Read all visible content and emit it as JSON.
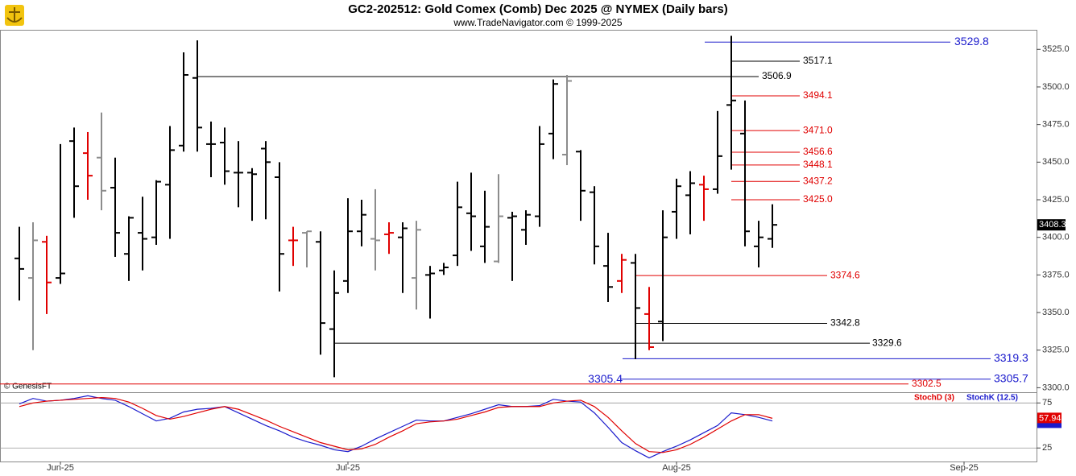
{
  "chart_data": [
    {
      "type": "ohlc",
      "title": "GC2-202512:  Gold Comex (Comb) Dec 2025 @ NYMEX  (Daily bars)",
      "subtitle": "www.TradeNavigator.com © 1999-2025",
      "watermark": "© GenesisFT",
      "categories": [
        null,
        null,
        null,
        "Jun-25",
        null,
        null,
        null,
        null,
        null,
        null,
        null,
        null,
        null,
        null,
        null,
        null,
        null,
        null,
        null,
        null,
        null,
        null,
        null,
        null,
        "Jul-25",
        null,
        null,
        null,
        null,
        null,
        null,
        null,
        null,
        null,
        null,
        null,
        null,
        null,
        null,
        null,
        null,
        null,
        null,
        null,
        null,
        null,
        null,
        null,
        "Aug-25",
        null,
        null,
        null,
        null,
        null,
        null,
        null,
        null,
        null,
        null,
        null,
        null,
        null,
        null,
        null,
        null,
        null,
        null,
        null,
        null,
        "Sep-25",
        null,
        null,
        null,
        null,
        null
      ],
      "open": [
        3386,
        3373,
        3397,
        3373,
        3464,
        3456,
        3453,
        3433,
        3389,
        3403,
        3400,
        3435,
        3461,
        3506,
        3462,
        3463,
        3443,
        3443,
        3459,
        3440,
        3398,
        3403,
        3397,
        3339,
        3371,
        3404,
        3399,
        3402,
        3400,
        3373,
        3375,
        3378,
        3388,
        3416,
        3394,
        3384,
        3413,
        3405,
        3414,
        3469,
        3455,
        3457,
        3430,
        3381,
        3371,
        3383,
        3349,
        3344,
        3417,
        3428,
        3435,
        3432,
        3488,
        3469,
        3394,
        3399,
        null,
        null,
        null,
        null,
        null,
        null,
        null,
        null,
        null,
        null,
        null,
        null,
        null,
        null,
        null,
        null,
        null,
        null,
        null
      ],
      "high": [
        3407,
        3410,
        3401,
        3462,
        3473,
        3470,
        3483,
        3453,
        3414,
        3427,
        3438,
        3474,
        3523,
        3531,
        3477,
        3473,
        3464,
        3446,
        3464,
        3450,
        3407,
        3404,
        3404,
        3378,
        3426,
        3425,
        3432,
        3410,
        3410,
        3411,
        3381,
        3383,
        3437,
        3443,
        3431,
        3442,
        3417,
        3418,
        3474,
        3505,
        3508,
        3458,
        3434,
        3403,
        3389,
        3389,
        3367,
        3418,
        3439,
        3444,
        3441,
        3484,
        3534,
        3491,
        3411,
        3422,
        null,
        null,
        null,
        null,
        null,
        null,
        null,
        null,
        null,
        null,
        null,
        null,
        null,
        null,
        null,
        null,
        null,
        null,
        null
      ],
      "low": [
        3358,
        3325,
        3349,
        3369,
        3413,
        3425,
        3418,
        3387,
        3371,
        3378,
        3395,
        3399,
        3457,
        3457,
        3440,
        3435,
        3420,
        3411,
        3412,
        3364,
        3381,
        3380,
        3322,
        3307,
        3363,
        3394,
        3378,
        3389,
        3363,
        3352,
        3346,
        3375,
        3381,
        3391,
        3383,
        3383,
        3371,
        3395,
        3407,
        3452,
        3448,
        3411,
        3382,
        3357,
        3363,
        3319,
        3325,
        3331,
        3399,
        3402,
        3411,
        3429,
        3445,
        3394,
        3380,
        3393,
        null,
        null,
        null,
        null,
        null,
        null,
        null,
        null,
        null,
        null,
        null,
        null,
        null,
        null,
        null,
        null,
        null,
        null,
        null
      ],
      "close": [
        3379,
        3398,
        3370,
        3376,
        3434,
        3441,
        3431,
        3403,
        3413,
        3399,
        3437,
        3458,
        3508,
        3473,
        3462,
        3444,
        3443,
        3442,
        3450,
        3389,
        3398,
        3404,
        3343,
        3363,
        3404,
        3415,
        3398,
        3403,
        3406,
        3405,
        3376,
        3380,
        3420,
        3414,
        3407,
        3414,
        3414,
        3415,
        3462,
        3502,
        3504,
        3431,
        3394,
        3367,
        3385,
        3353,
        3327,
        3400,
        3434,
        3436,
        3432,
        3454,
        3491,
        3404,
        3400,
        3408.3,
        null,
        null,
        null,
        null,
        null,
        null,
        null,
        null,
        null,
        null,
        null,
        null,
        null,
        null,
        null,
        null,
        null,
        null,
        null
      ],
      "bar_colors": [
        "#000000",
        "#8c8c8c",
        "#e00000",
        "#000000",
        "#000000",
        "#e00000",
        "#8c8c8c",
        "#000000",
        "#000000",
        "#000000",
        "#000000",
        "#000000",
        "#000000",
        "#000000",
        "#000000",
        "#000000",
        "#000000",
        "#000000",
        "#000000",
        "#000000",
        "#e00000",
        "#8c8c8c",
        "#000000",
        "#000000",
        "#000000",
        "#000000",
        "#8c8c8c",
        "#e00000",
        "#000000",
        "#8c8c8c",
        "#000000",
        "#000000",
        "#000000",
        "#000000",
        "#000000",
        "#8c8c8c",
        "#000000",
        "#000000",
        "#000000",
        "#000000",
        "#8c8c8c",
        "#000000",
        "#000000",
        "#000000",
        "#e00000",
        "#000000",
        "#e00000",
        "#000000",
        "#000000",
        "#000000",
        "#e00000",
        "#000000",
        "#000000",
        "#000000",
        "#000000",
        "#000000"
      ],
      "ylim": [
        3297,
        3538
      ],
      "yticks": [
        {
          "value": 3300,
          "label": "3300.0"
        },
        {
          "value": 3325,
          "label": "3325.0"
        },
        {
          "value": 3350,
          "label": "3350.0"
        },
        {
          "value": 3375,
          "label": "3375.0"
        },
        {
          "value": 3400,
          "label": "3400.0"
        },
        {
          "value": 3425,
          "label": "3425.0"
        },
        {
          "value": 3450,
          "label": "3450.0"
        },
        {
          "value": 3475,
          "label": "3475.0"
        },
        {
          "value": 3500,
          "label": "3500.0"
        },
        {
          "value": 3525,
          "label": "3525.0"
        }
      ],
      "levels": [
        {
          "value": 3529.8,
          "label": "3529.8",
          "color": "#1a1acc"
        },
        {
          "value": 3517.1,
          "label": "3517.1",
          "color": "#000000"
        },
        {
          "value": 3506.9,
          "label": "3506.9",
          "color": "#000000"
        },
        {
          "value": 3494.1,
          "label": "3494.1",
          "color": "#e00000"
        },
        {
          "value": 3471,
          "label": "3471.0",
          "color": "#e00000"
        },
        {
          "value": 3456.6,
          "label": "3456.6",
          "color": "#e00000"
        },
        {
          "value": 3448.1,
          "label": "3448.1",
          "color": "#e00000"
        },
        {
          "value": 3437.2,
          "label": "3437.2",
          "color": "#e00000"
        },
        {
          "value": 3425,
          "label": "3425.0",
          "color": "#e00000"
        },
        {
          "value": 3374.6,
          "label": "3374.6",
          "color": "#e00000"
        },
        {
          "value": 3342.8,
          "label": "3342.8",
          "color": "#000000"
        },
        {
          "value": 3329.6,
          "label": "3329.6",
          "color": "#000000"
        },
        {
          "value": 3319.3,
          "label": "3319.3",
          "color": "#1a1acc"
        },
        {
          "value": 3305.7,
          "label": "3305.7",
          "color": "#1a1acc"
        },
        {
          "value": 3305.4,
          "label": "3305.4",
          "color": "#1a1acc"
        },
        {
          "value": 3302.5,
          "label": "3302.5",
          "color": "#e00000"
        }
      ]
    },
    {
      "type": "line",
      "series": [
        {
          "name": "StochD (3)",
          "color": "#e00000",
          "values": [
            71,
            75,
            77,
            78,
            79,
            80,
            81,
            80,
            76,
            69,
            61,
            57,
            60,
            64,
            68,
            71,
            68,
            62,
            56,
            49,
            43,
            37,
            31,
            27,
            23,
            24,
            29,
            37,
            44,
            52,
            54,
            55,
            57,
            61,
            65,
            70,
            71,
            71,
            71,
            75,
            77,
            78,
            71,
            59,
            44,
            30,
            21,
            20,
            23,
            29,
            37,
            46,
            55,
            62,
            62,
            57.94
          ]
        },
        {
          "name": "StochK (12.5)",
          "color": "#1a1acc",
          "values": [
            74,
            80,
            77,
            78,
            80,
            83,
            80,
            78,
            71,
            63,
            55,
            58,
            65,
            68,
            69,
            71,
            64,
            57,
            50,
            44,
            37,
            32,
            28,
            23,
            21,
            27,
            35,
            42,
            49,
            56,
            55,
            55,
            59,
            63,
            68,
            73,
            71,
            71,
            72,
            79,
            77,
            76,
            64,
            48,
            31,
            22,
            14,
            21,
            27,
            34,
            42,
            50,
            64,
            62,
            59,
            55
          ]
        }
      ],
      "ylim": [
        10,
        86
      ],
      "yticks": [
        25,
        75
      ]
    }
  ]
}
